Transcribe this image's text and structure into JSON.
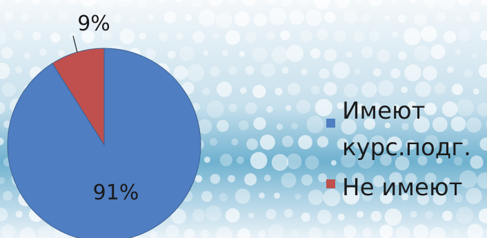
{
  "chart_data": {
    "type": "pie",
    "title": "",
    "slices": [
      {
        "label": "Имеют курс.подг.",
        "value": 91,
        "data_label": "91%",
        "color": "#4f7ec2"
      },
      {
        "label": "Не имеют",
        "value": 9,
        "data_label": "9%",
        "color": "#c0504d"
      }
    ],
    "legend": {
      "placement": "right",
      "entries": [
        {
          "lines": [
            "Имеют",
            "курс.подг."
          ],
          "color": "#4f7ec2"
        },
        {
          "lines": [
            "Не имеют"
          ],
          "color": "#c0504d"
        }
      ]
    }
  },
  "background": {
    "top": "#f4f8fb",
    "band": "#6fb1cf",
    "bottom": "#e9f2f8"
  }
}
